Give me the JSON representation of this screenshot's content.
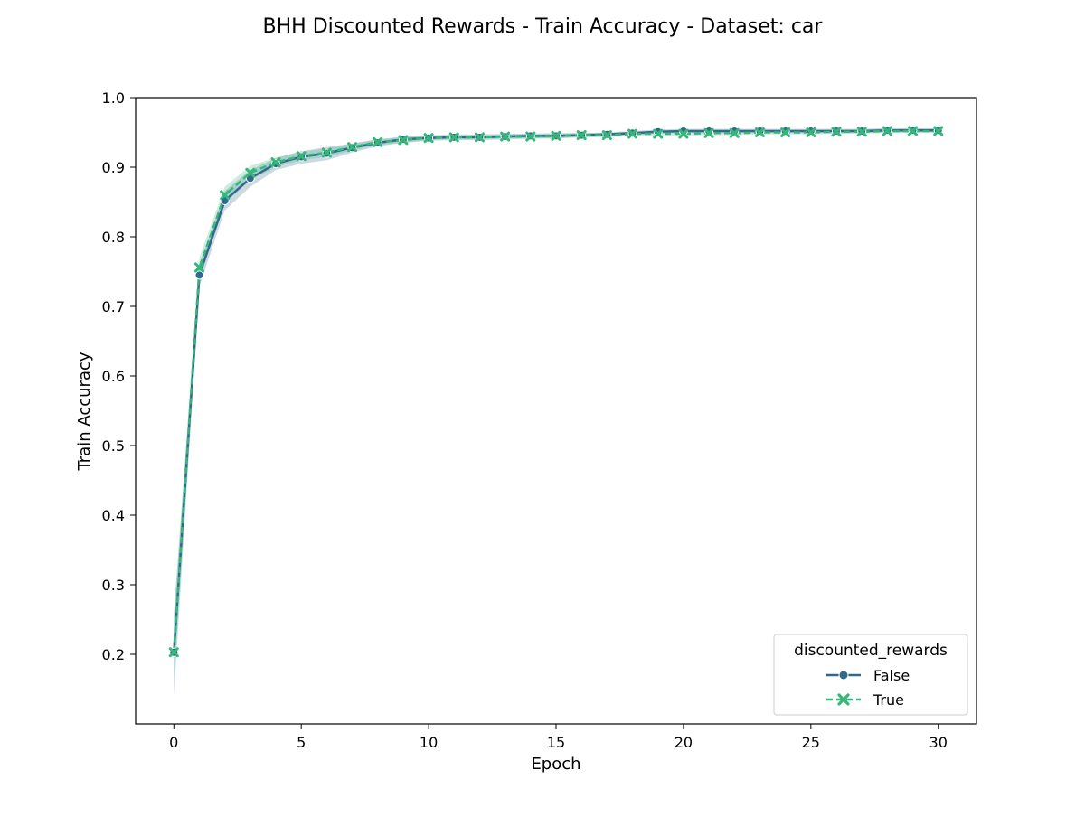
{
  "chart_data": {
    "type": "line",
    "title": "BHH Discounted Rewards - Train Accuracy - Dataset: car",
    "xlabel": "Epoch",
    "ylabel": "Train Accuracy",
    "xlim": [
      -1.5,
      31.5
    ],
    "ylim": [
      0.1,
      1.0
    ],
    "xticks": [
      0,
      5,
      10,
      15,
      20,
      25,
      30
    ],
    "yticks": [
      0.2,
      0.3,
      0.4,
      0.5,
      0.6,
      0.7,
      0.8,
      0.9,
      1.0
    ],
    "xtick_labels": [
      "0",
      "5",
      "10",
      "15",
      "20",
      "25",
      "30"
    ],
    "ytick_labels": [
      "0.2",
      "0.3",
      "0.4",
      "0.5",
      "0.6",
      "0.7",
      "0.8",
      "0.9",
      "1.0"
    ],
    "grid": false,
    "legend": {
      "title": "discounted_rewards",
      "placement": "bottom-right"
    },
    "x": [
      0,
      1,
      2,
      3,
      4,
      5,
      6,
      7,
      8,
      9,
      10,
      11,
      12,
      13,
      14,
      15,
      16,
      17,
      18,
      19,
      20,
      21,
      22,
      23,
      24,
      25,
      26,
      27,
      28,
      29,
      30
    ],
    "series": [
      {
        "name": "False",
        "color": "#31688e",
        "marker": "circle",
        "dashed": false,
        "values": [
          0.203,
          0.745,
          0.852,
          0.884,
          0.905,
          0.915,
          0.92,
          0.928,
          0.935,
          0.94,
          0.942,
          0.943,
          0.943,
          0.944,
          0.945,
          0.945,
          0.946,
          0.947,
          0.949,
          0.951,
          0.952,
          0.952,
          0.952,
          0.952,
          0.952,
          0.952,
          0.952,
          0.952,
          0.953,
          0.953,
          0.953
        ],
        "ci_lower": [
          0.14,
          0.728,
          0.838,
          0.872,
          0.896,
          0.905,
          0.91,
          0.921,
          0.93,
          0.935,
          0.938,
          0.939,
          0.939,
          0.94,
          0.941,
          0.941,
          0.943,
          0.944,
          0.946,
          0.948,
          0.949,
          0.949,
          0.949,
          0.949,
          0.949,
          0.949,
          0.949,
          0.949,
          0.95,
          0.95,
          0.95
        ],
        "ci_upper": [
          0.26,
          0.76,
          0.866,
          0.896,
          0.913,
          0.923,
          0.929,
          0.934,
          0.94,
          0.944,
          0.946,
          0.947,
          0.947,
          0.948,
          0.948,
          0.949,
          0.949,
          0.95,
          0.952,
          0.954,
          0.955,
          0.955,
          0.955,
          0.955,
          0.955,
          0.955,
          0.955,
          0.955,
          0.956,
          0.956,
          0.956
        ]
      },
      {
        "name": "True",
        "color": "#35b779",
        "marker": "x",
        "dashed": true,
        "values": [
          0.203,
          0.756,
          0.86,
          0.892,
          0.907,
          0.916,
          0.921,
          0.929,
          0.936,
          0.939,
          0.942,
          0.943,
          0.943,
          0.944,
          0.944,
          0.945,
          0.946,
          0.946,
          0.948,
          0.948,
          0.948,
          0.949,
          0.949,
          0.95,
          0.95,
          0.95,
          0.951,
          0.951,
          0.952,
          0.952,
          0.952
        ],
        "ci_lower": [
          0.16,
          0.742,
          0.848,
          0.882,
          0.9,
          0.91,
          0.915,
          0.924,
          0.932,
          0.935,
          0.939,
          0.94,
          0.94,
          0.941,
          0.941,
          0.942,
          0.943,
          0.943,
          0.945,
          0.945,
          0.945,
          0.946,
          0.946,
          0.947,
          0.947,
          0.947,
          0.948,
          0.948,
          0.949,
          0.949,
          0.949
        ],
        "ci_upper": [
          0.25,
          0.77,
          0.872,
          0.902,
          0.914,
          0.922,
          0.927,
          0.934,
          0.94,
          0.943,
          0.945,
          0.946,
          0.946,
          0.947,
          0.947,
          0.948,
          0.949,
          0.949,
          0.951,
          0.951,
          0.951,
          0.952,
          0.952,
          0.953,
          0.953,
          0.953,
          0.954,
          0.954,
          0.955,
          0.955,
          0.955
        ]
      }
    ]
  }
}
